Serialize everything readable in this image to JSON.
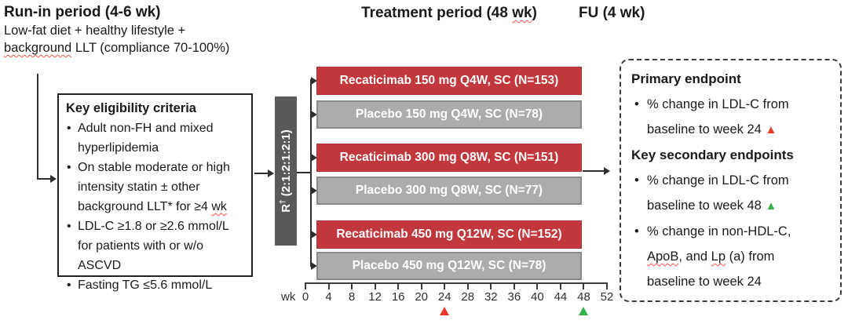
{
  "ui": {
    "bullet": "•",
    "triangle": "▲"
  },
  "colors": {
    "treatment_bar": "#C2373B",
    "placebo_bar": "#ACACAC",
    "randomization_box": "#595959",
    "red_marker": "#E8362A",
    "green_marker": "#35B34A",
    "squiggle": "#FF5047"
  },
  "run_in": {
    "title": "Run-in period (4-6 wk)",
    "line1": "Low-fat diet + healthy lifestyle +",
    "line2_word": "background",
    "line2_rest": " LLT (compliance 70-100%)"
  },
  "periods": {
    "treatment_pre": "Treatment period (48 ",
    "treatment_wk": "wk",
    "treatment_post": ")",
    "fu": "FU (4 wk)"
  },
  "eligibility": {
    "title": "Key eligibility criteria",
    "bullet1": "Adult non-FH and mixed hyperlipidemia",
    "bullet2_pre": "On stable moderate or high intensity statin ± other background LLT* for ≥4 ",
    "bullet2_wk": "wk",
    "bullet3": "LDL-C ≥1.8 or ≥2.6 mmol/L for patients with or w/o ASCVD",
    "bullet4": "Fasting TG ≤5.6 mmol/L"
  },
  "randomization": {
    "r": "R",
    "dagger": "†",
    "ratio": " (2:1:2:1:2:1)"
  },
  "arms": [
    {
      "label": "Recaticimab 150 mg Q4W, SC (N=153)",
      "type": "treatment"
    },
    {
      "label": "Placebo 150 mg Q4W, SC (N=78)",
      "type": "placebo"
    },
    {
      "label": "Recaticimab 300 mg Q8W, SC (N=151)",
      "type": "treatment"
    },
    {
      "label": "Placebo 300 mg Q8W, SC (N=77)",
      "type": "placebo"
    },
    {
      "label": "Recaticimab 450 mg Q12W, SC (N=152)",
      "type": "treatment"
    },
    {
      "label": "Placebo 450 mg Q12W, SC (N=78)",
      "type": "placebo"
    }
  ],
  "timeline": {
    "unit_label": "wk",
    "ticks": [
      "0",
      "4",
      "8",
      "12",
      "16",
      "20",
      "24",
      "28",
      "32",
      "36",
      "40",
      "44",
      "48",
      "52"
    ],
    "red_marker_week": "24",
    "green_marker_week": "48"
  },
  "endpoints": {
    "primary_title": "Primary endpoint",
    "primary_b1": "% change in LDL-C from baseline to week 24 ",
    "secondary_title": "Key secondary endpoints",
    "secondary_b1": "% change in LDL-C from baseline to week 48 ",
    "secondary_b2_p1": "% change in non-HDL-C, ",
    "secondary_b2_apob": "ApoB",
    "secondary_b2_p2": ", and ",
    "secondary_b2_lp": "Lp",
    "secondary_b2_p3": " (a) from baseline to week 24"
  }
}
